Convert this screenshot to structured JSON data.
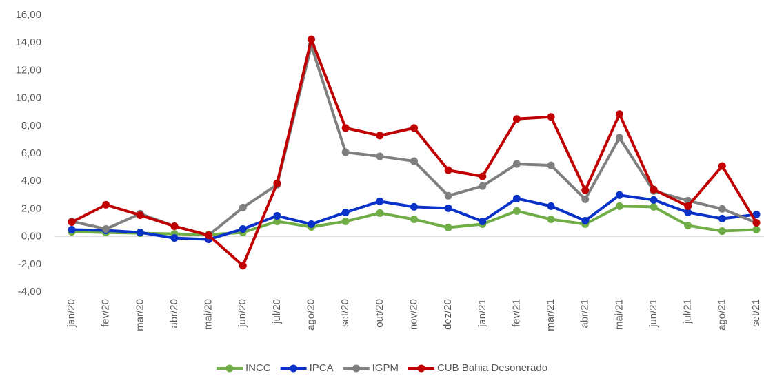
{
  "chart_data": {
    "type": "line",
    "categories": [
      "jan/20",
      "fev/20",
      "mar/20",
      "abr/20",
      "mai/20",
      "jun/20",
      "jul/20",
      "ago/20",
      "set/20",
      "out/20",
      "nov/20",
      "dez/20",
      "jan/21",
      "fev/21",
      "mar/21",
      "abr/21",
      "mai/21",
      "jun/21",
      "jul/21",
      "ago/21",
      "set/21"
    ],
    "series": [
      {
        "name": "INCC",
        "color": "#70ad47",
        "values": [
          0.35,
          0.3,
          0.25,
          0.2,
          0.15,
          0.3,
          1.1,
          0.7,
          1.1,
          1.7,
          1.25,
          0.65,
          0.9,
          1.85,
          1.25,
          0.9,
          2.2,
          2.15,
          0.8,
          0.4,
          0.5
        ]
      },
      {
        "name": "IPCA",
        "color": "#0a32c8",
        "values": [
          0.5,
          0.45,
          0.3,
          -0.1,
          -0.2,
          0.55,
          1.5,
          0.9,
          1.75,
          2.55,
          2.15,
          2.05,
          1.1,
          2.75,
          2.2,
          1.15,
          3.0,
          2.65,
          1.75,
          1.3,
          1.6
        ]
      },
      {
        "name": "IGPM",
        "color": "#7f7f7f",
        "values": [
          1.1,
          0.55,
          1.65,
          0.75,
          0.1,
          2.1,
          3.75,
          13.8,
          6.1,
          5.8,
          5.45,
          2.95,
          3.65,
          5.25,
          5.15,
          2.7,
          7.15,
          3.3,
          2.6,
          2.0,
          1.0
        ]
      },
      {
        "name": "CUB Bahia Desonerado",
        "color": "#c00000",
        "values": [
          1.05,
          2.3,
          1.55,
          0.75,
          0.1,
          -2.1,
          3.85,
          14.25,
          7.85,
          7.3,
          7.85,
          4.8,
          4.35,
          8.5,
          8.65,
          3.35,
          8.85,
          3.4,
          2.2,
          5.1,
          1.0
        ]
      }
    ],
    "ylim": [
      -4,
      16
    ],
    "yticks": [
      {
        "value": -4,
        "label": "-4,00"
      },
      {
        "value": -2,
        "label": "-2,00"
      },
      {
        "value": 0,
        "label": "0,00"
      },
      {
        "value": 2,
        "label": "2,00"
      },
      {
        "value": 4,
        "label": "4,00"
      },
      {
        "value": 6,
        "label": "6,00"
      },
      {
        "value": 8,
        "label": "8,00"
      },
      {
        "value": 10,
        "label": "10,00"
      },
      {
        "value": 12,
        "label": "12,00"
      },
      {
        "value": 14,
        "label": "14,00"
      },
      {
        "value": 16,
        "label": "16,00"
      }
    ],
    "legend": "bottom"
  }
}
